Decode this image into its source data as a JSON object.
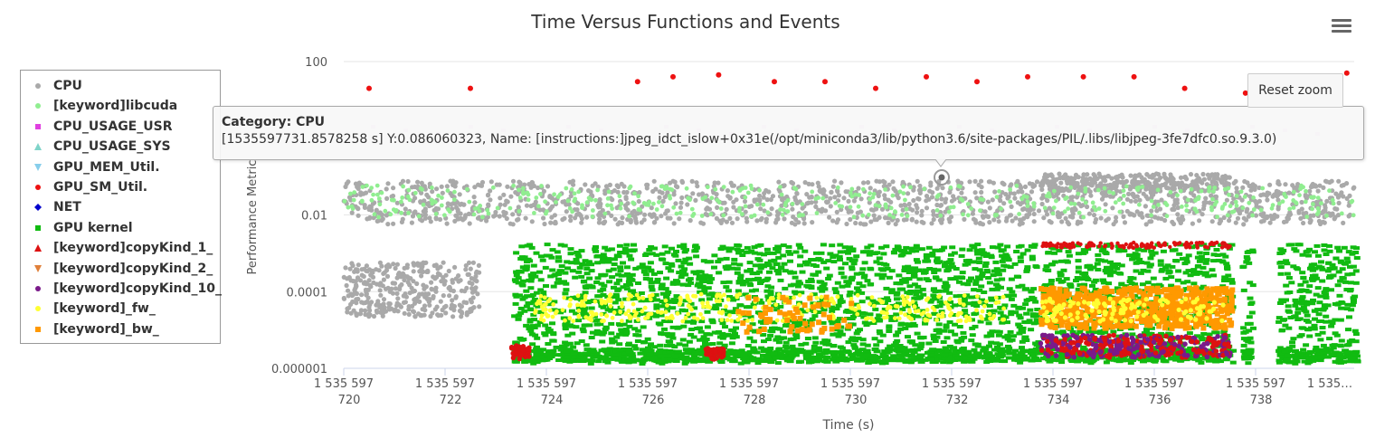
{
  "chart_data": {
    "type": "scatter",
    "title": "Time Versus Functions and Events",
    "xlabel": "Time (s)",
    "ylabel": "Performance Metric",
    "yscale": "log",
    "xlim": [
      1535597720,
      1535597740
    ],
    "ylim": [
      1e-06,
      100
    ],
    "x_ticks": [
      1535597720,
      1535597722,
      1535597724,
      1535597726,
      1535597728,
      1535597730,
      1535597732,
      1535597734,
      1535597736,
      1535597738,
      1535597740
    ],
    "x_tick_labels": [
      [
        "1 535 597",
        "720"
      ],
      [
        "1 535 597",
        "722"
      ],
      [
        "1 535 597",
        "724"
      ],
      [
        "1 535 597",
        "726"
      ],
      [
        "1 535 597",
        "728"
      ],
      [
        "1 535 597",
        "730"
      ],
      [
        "1 535 597",
        "732"
      ],
      [
        "1 535 597",
        "734"
      ],
      [
        "1 535 597",
        "736"
      ],
      [
        "1 535 597",
        "738"
      ],
      [
        "1 535…",
        ""
      ]
    ],
    "y_ticks": [
      1e-06,
      0.0001,
      0.01,
      100
    ],
    "y_tick_labels": [
      "0.000001",
      "0.0001",
      "0.01",
      "100"
    ],
    "grid": true,
    "legend_position": "left",
    "series": [
      {
        "name": "CPU",
        "color": "#a9a9a9",
        "symbol": "circle"
      },
      {
        "name": "[keyword]libcuda",
        "color": "#90ee90",
        "symbol": "circle"
      },
      {
        "name": "CPU_USAGE_USR",
        "color": "#e040e0",
        "symbol": "square"
      },
      {
        "name": "CPU_USAGE_SYS",
        "color": "#7fd4c9",
        "symbol": "triangle-up"
      },
      {
        "name": "GPU_MEM_Util.",
        "color": "#87ceeb",
        "symbol": "triangle-down"
      },
      {
        "name": "GPU_SM_Util.",
        "color": "#ee1111",
        "symbol": "circle"
      },
      {
        "name": "NET",
        "color": "#0000cc",
        "symbol": "diamond"
      },
      {
        "name": "GPU kernel",
        "color": "#11bb11",
        "symbol": "square"
      },
      {
        "name": "[keyword]copyKind_1_",
        "color": "#dd1111",
        "symbol": "triangle-up"
      },
      {
        "name": "[keyword]copyKind_2_",
        "color": "#e0803a",
        "symbol": "triangle-down"
      },
      {
        "name": "[keyword]copyKind_10_",
        "color": "#7a1a8a",
        "symbol": "circle"
      },
      {
        "name": "[keyword]_fw_",
        "color": "#ffff33",
        "symbol": "circle"
      },
      {
        "name": "[keyword]_bw_",
        "color": "#ff9900",
        "symbol": "square"
      }
    ],
    "sample_points": {
      "GPU_SM_Util.": [
        [
          1535597720.5,
          20
        ],
        [
          1535597722.5,
          20
        ],
        [
          1535597725.8,
          30
        ],
        [
          1535597726.5,
          40
        ],
        [
          1535597727.4,
          45
        ],
        [
          1535597728.5,
          30
        ],
        [
          1535597729.5,
          30
        ],
        [
          1535597730.5,
          20
        ],
        [
          1535597731.5,
          40
        ],
        [
          1535597732.5,
          30
        ],
        [
          1535597733.5,
          40
        ],
        [
          1535597734.6,
          40
        ],
        [
          1535597735.6,
          40
        ],
        [
          1535597736.6,
          20
        ],
        [
          1535597737.8,
          15
        ],
        [
          1535597739.8,
          50
        ]
      ]
    }
  },
  "tooltip": {
    "category_label": "Category:",
    "category_value": "CPU",
    "detail": "[1535597731.8578258 s] Y:0.086060323, Name: [instructions:]jpeg_idct_islow+0x31e(/opt/miniconda3/lib/python3.6/site-packages/PIL/.libs/libjpeg-3fe7dfc0.so.9.3.0)"
  },
  "controls": {
    "reset_zoom_label": "Reset zoom",
    "menu_icon": "hamburger-menu-icon"
  }
}
